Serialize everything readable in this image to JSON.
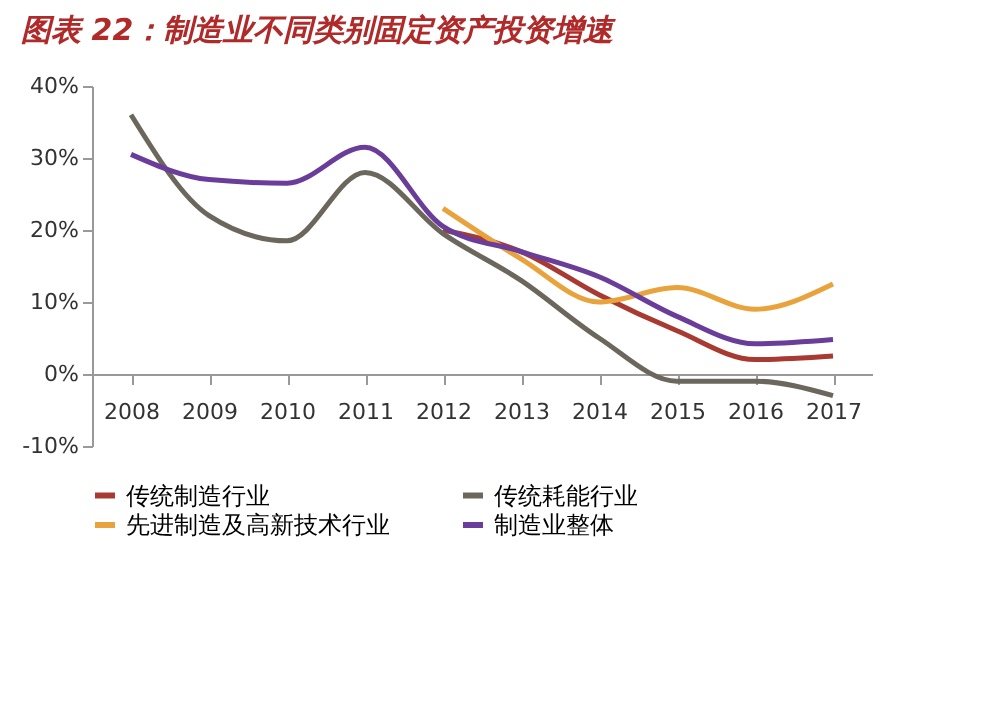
{
  "chart_data": {
    "type": "line",
    "title": "图表 22：制造业不同类别固定资产投资增速",
    "categories": [
      "2008",
      "2009",
      "2010",
      "2011",
      "2012",
      "2013",
      "2014",
      "2015",
      "2016",
      "2017"
    ],
    "series": [
      {
        "name": "传统制造行业",
        "color": "#a83a32",
        "values": [
          null,
          null,
          null,
          null,
          20,
          17,
          11,
          6,
          2,
          2.5
        ]
      },
      {
        "name": "传统耗能行业",
        "color": "#6b675c",
        "values": [
          36,
          22,
          18.5,
          28,
          19.5,
          13,
          5,
          -1,
          -1,
          -3
        ]
      },
      {
        "name": "先进制造及高新技术行业",
        "color": "#e8a33c",
        "values": [
          null,
          null,
          null,
          null,
          23,
          16,
          10,
          12,
          9,
          12.5
        ]
      },
      {
        "name": "制造业整体",
        "color": "#6a3d9a",
        "values": [
          30.5,
          27,
          26.5,
          31.5,
          20.5,
          17,
          13.5,
          8,
          4.2,
          4.8
        ]
      }
    ],
    "ylim": [
      -10,
      40
    ],
    "yticks": [
      {
        "value": -10,
        "label": "-10%"
      },
      {
        "value": 0,
        "label": "0%"
      },
      {
        "value": 10,
        "label": "10%"
      },
      {
        "value": 20,
        "label": "20%"
      },
      {
        "value": 30,
        "label": "30%"
      },
      {
        "value": 40,
        "label": "40%"
      }
    ],
    "grid": false,
    "legend": "bottom",
    "marker": "none",
    "line_style": "solid"
  }
}
